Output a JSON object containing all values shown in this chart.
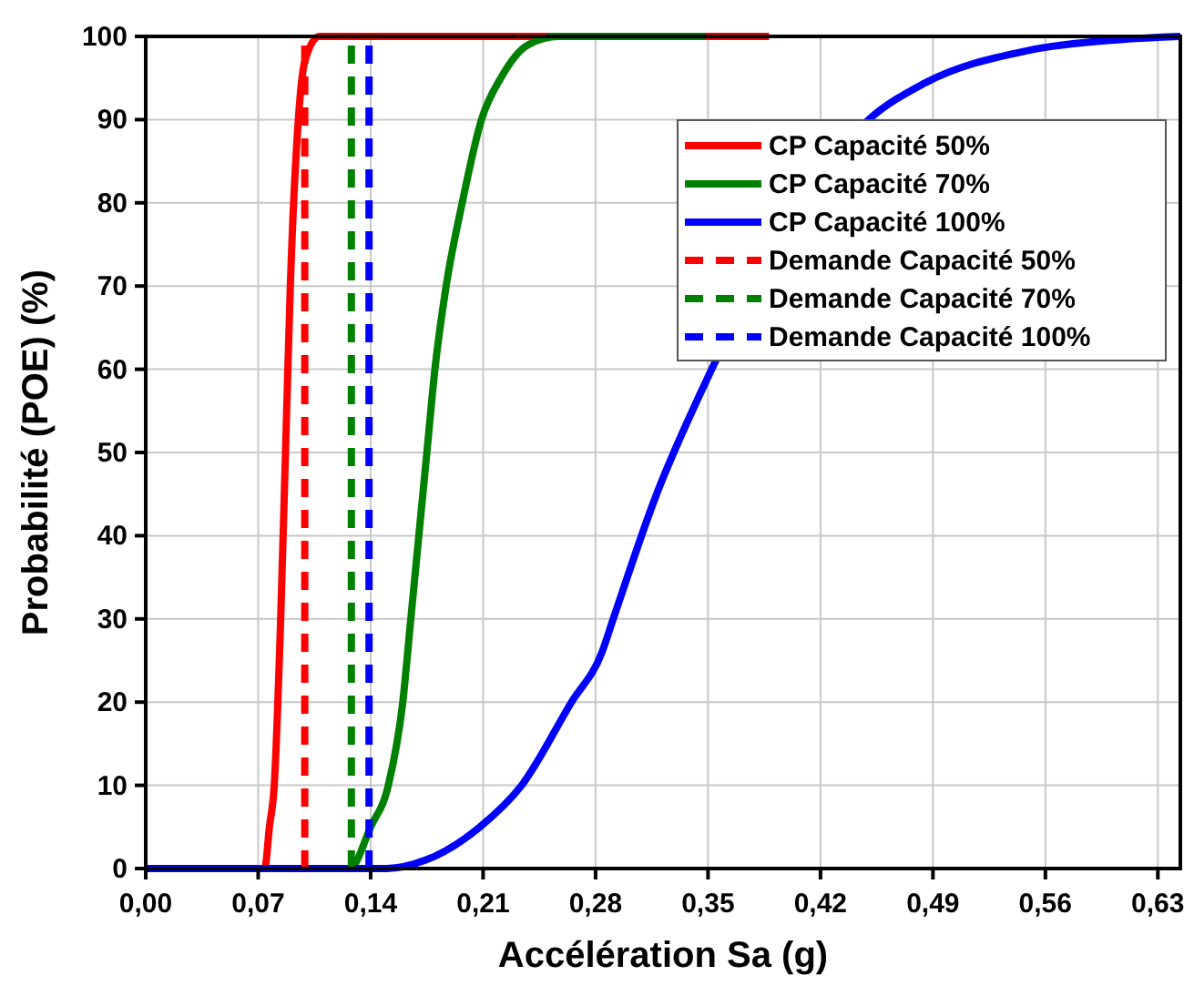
{
  "chart_data": {
    "type": "line",
    "xlabel": "Accélération Sa (g)",
    "ylabel": "Probabilité (POE) (%)",
    "xlim": [
      0,
      0.644
    ],
    "ylim": [
      0,
      100
    ],
    "xticks": [
      {
        "value": 0,
        "label": "0,00"
      },
      {
        "value": 0.07,
        "label": "0,07"
      },
      {
        "value": 0.14,
        "label": "0,14"
      },
      {
        "value": 0.21,
        "label": "0,21"
      },
      {
        "value": 0.28,
        "label": "0,28"
      },
      {
        "value": 0.35,
        "label": "0,35"
      },
      {
        "value": 0.42,
        "label": "0,42"
      },
      {
        "value": 0.49,
        "label": "0,49"
      },
      {
        "value": 0.56,
        "label": "0,56"
      },
      {
        "value": 0.63,
        "label": "0,63"
      }
    ],
    "yticks": [
      0,
      10,
      20,
      30,
      40,
      50,
      60,
      70,
      80,
      90,
      100
    ],
    "grid": true,
    "legend": "top right",
    "series": [
      {
        "name": "CP Capacité 50%",
        "color": "#ff0000",
        "line_style": "solid",
        "x": [
          0,
          0.074,
          0.077,
          0.08,
          0.084,
          0.087,
          0.09,
          0.095,
          0.099,
          0.108,
          0.388
        ],
        "values": [
          0,
          0,
          5,
          10,
          30,
          50,
          70,
          90,
          97,
          100,
          100
        ]
      },
      {
        "name": "CP Capacité 70%",
        "color": "#008000",
        "line_style": "solid",
        "x": [
          0,
          0.127,
          0.14,
          0.151,
          0.16,
          0.165,
          0.17,
          0.175,
          0.18,
          0.187,
          0.197,
          0.209,
          0.221,
          0.238,
          0.257,
          0.348
        ],
        "values": [
          0,
          0,
          5,
          10,
          20,
          30,
          40,
          50,
          60,
          70,
          80,
          90,
          95,
          99,
          100,
          100
        ]
      },
      {
        "name": "CP Capacité 100%",
        "color": "#0000ff",
        "line_style": "solid",
        "x": [
          0,
          0.15,
          0.174,
          0.208,
          0.234,
          0.265,
          0.284,
          0.291,
          0.318,
          0.345,
          0.45,
          0.484,
          0.549,
          0.605,
          0.644
        ],
        "values": [
          0,
          0,
          1,
          5,
          10,
          20,
          26,
          30,
          45,
          57,
          90,
          94.3,
          98.3,
          99.6,
          100
        ]
      },
      {
        "name": "Demande Capacité 50%",
        "color": "#ff0000",
        "line_style": "dashed",
        "x": [
          0.099,
          0.099
        ],
        "values": [
          0,
          100
        ]
      },
      {
        "name": "Demande Capacité 70%",
        "color": "#008000",
        "line_style": "dashed",
        "x": [
          0.128,
          0.128
        ],
        "values": [
          0,
          100
        ]
      },
      {
        "name": "Demande Capacité 100%",
        "color": "#0000ff",
        "line_style": "dashed",
        "x": [
          0.139,
          0.139
        ],
        "values": [
          0,
          100
        ]
      }
    ]
  }
}
